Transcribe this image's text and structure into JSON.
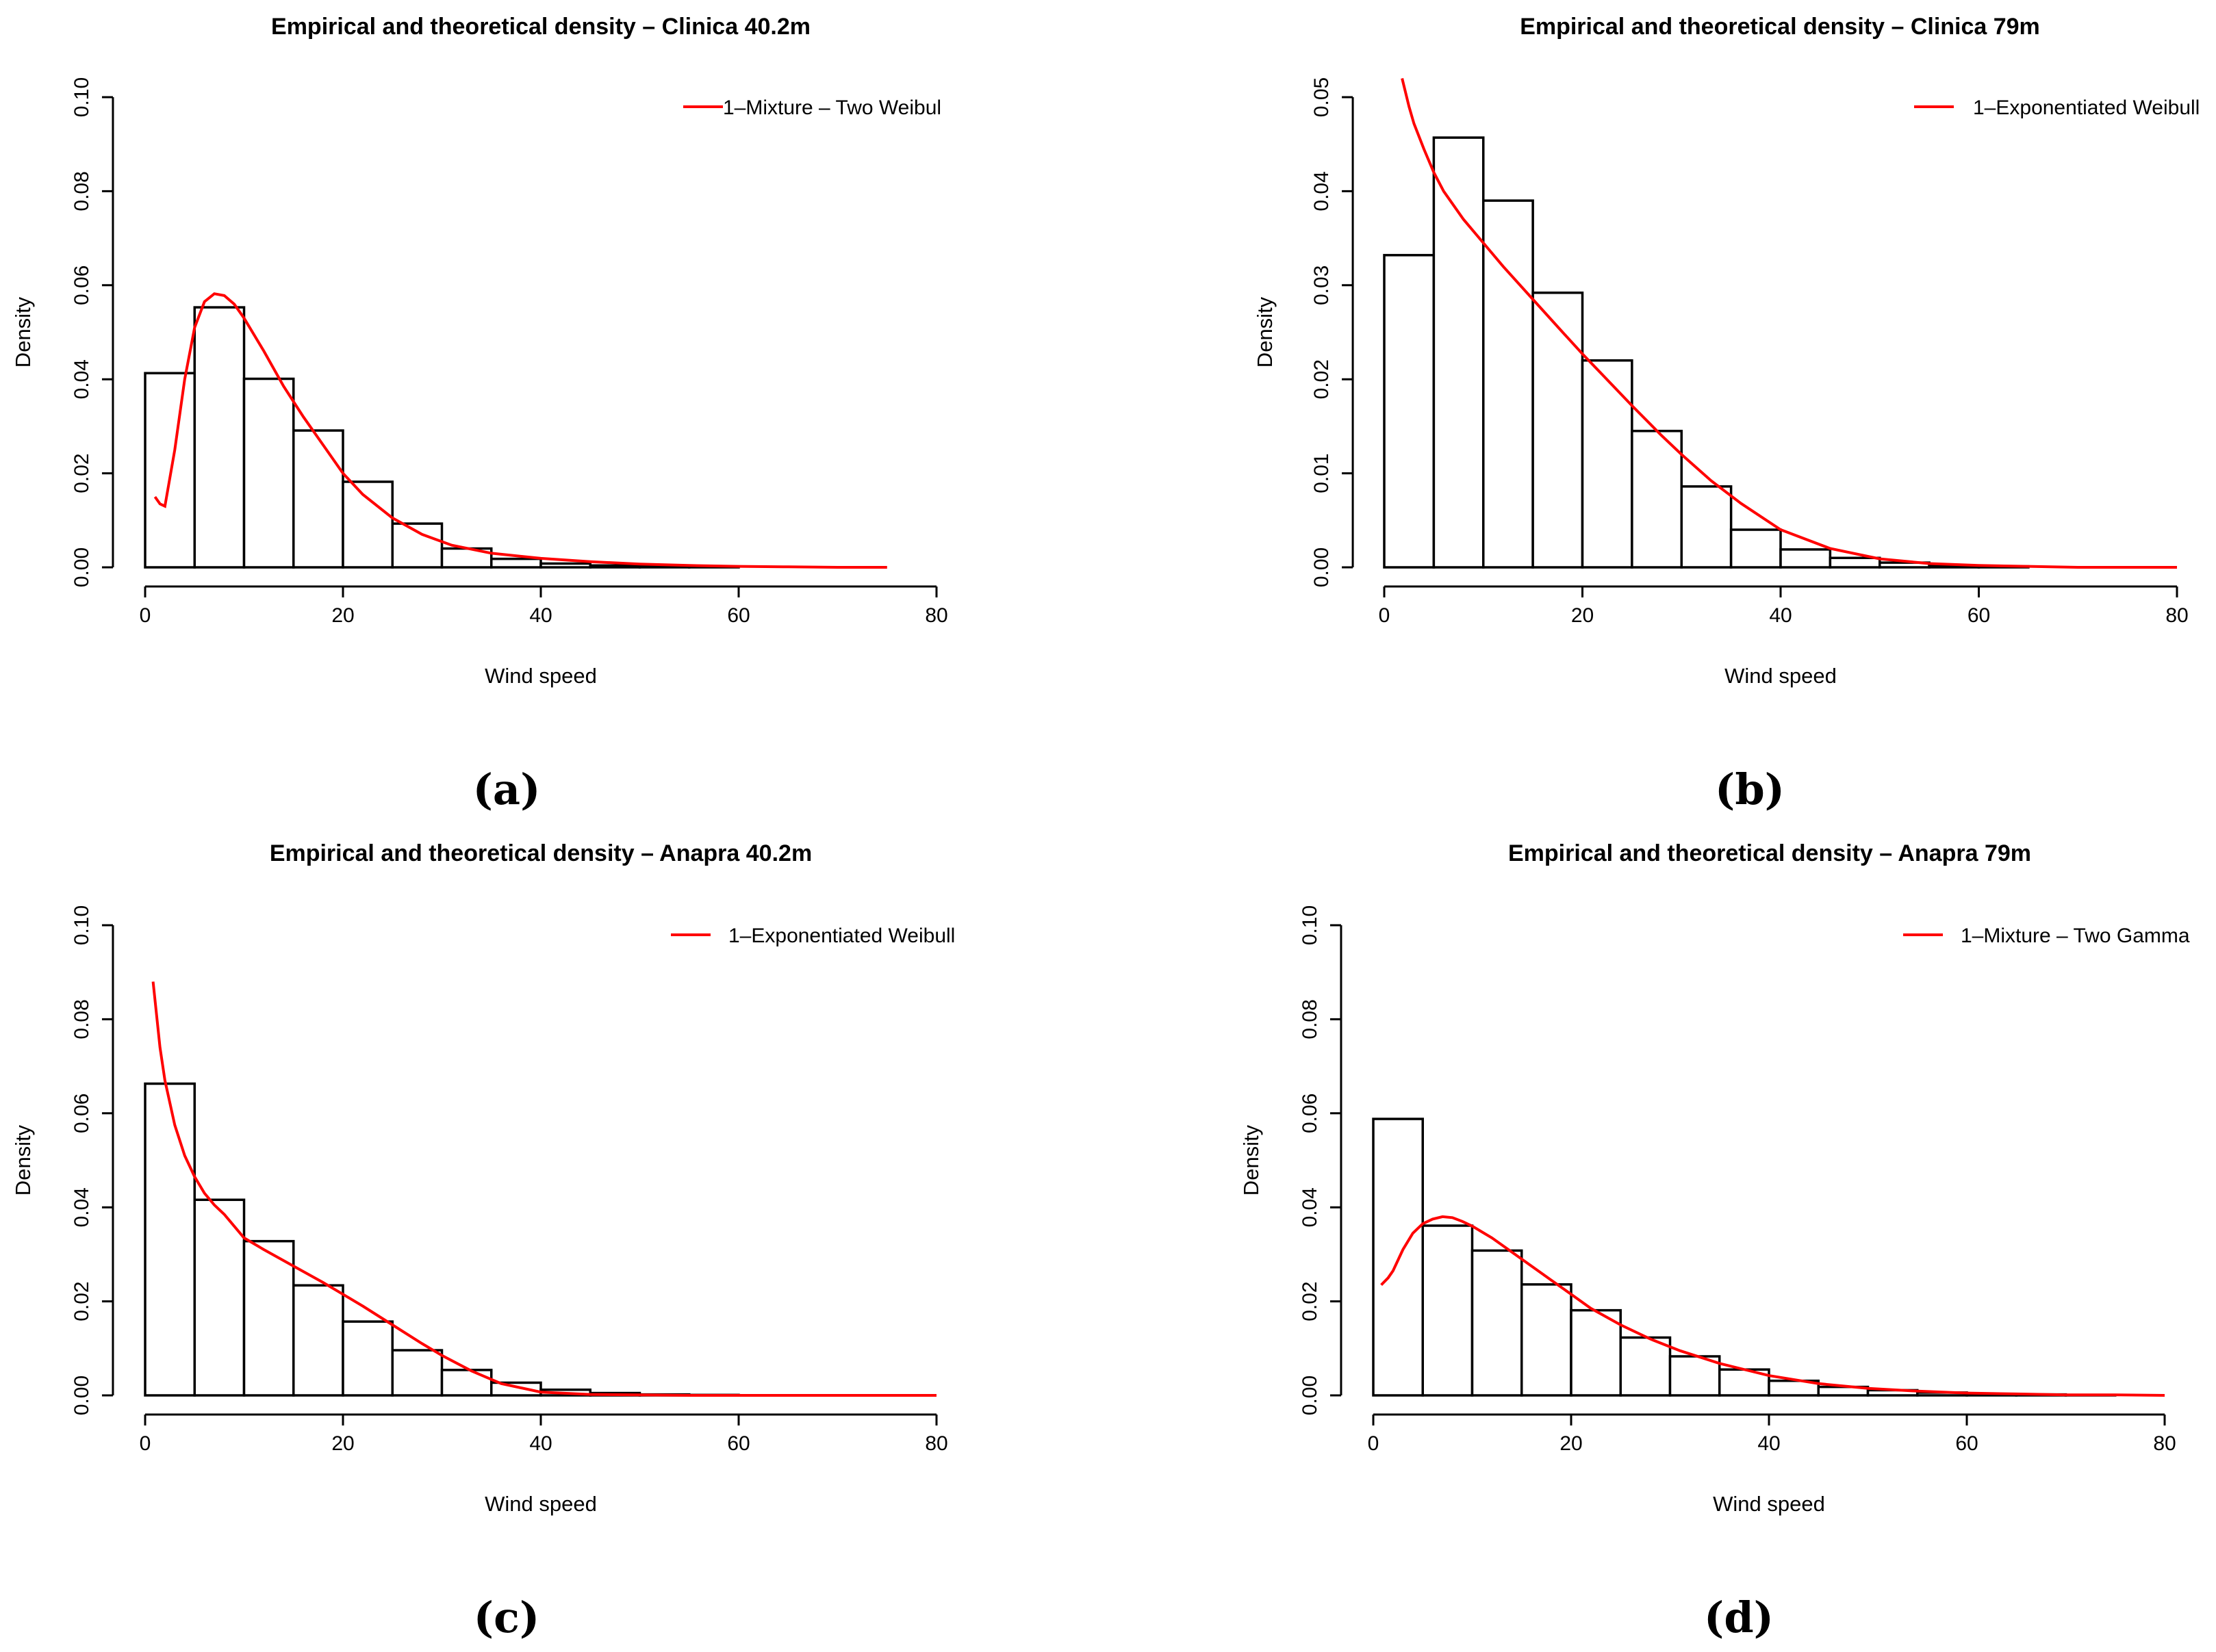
{
  "chart_data": [
    {
      "type": "histogram",
      "panel_label": "(a)",
      "title": "Empirical and theoretical density – Clinica 40.2m",
      "xlabel": "Wind speed",
      "ylabel": "Density",
      "xlim": [
        0,
        80
      ],
      "ylim": [
        0,
        0.1
      ],
      "xticks": [
        0,
        20,
        40,
        60,
        80
      ],
      "xtick_labels": [
        "0",
        "20",
        "40",
        "60",
        "80"
      ],
      "yticks": [
        0,
        0.02,
        0.04,
        0.06,
        0.08,
        0.1
      ],
      "ytick_labels": [
        "0.00",
        "0.02",
        "0.04",
        "0.06",
        "0.08",
        "0.10"
      ],
      "bin_edges": [
        0,
        5,
        10,
        15,
        20,
        25,
        30,
        35,
        40,
        45,
        50,
        55,
        60,
        65,
        70,
        75,
        80
      ],
      "values": [
        0.0413,
        0.0553,
        0.0401,
        0.0291,
        0.0182,
        0.0093,
        0.004,
        0.0018,
        0.0008,
        0.0004,
        0.0002,
        0.0001,
        0.0,
        0.0,
        0.0,
        0.0
      ],
      "legend": "1–Mixture – Two Weibul",
      "legend_position": "top-right",
      "curve_color": "#ff0000",
      "curve": {
        "x": [
          1,
          1.5,
          2,
          3,
          4,
          5,
          6,
          7,
          8,
          9,
          10,
          12,
          14,
          16,
          18,
          20,
          22,
          25,
          28,
          31,
          35,
          40,
          45,
          50,
          55,
          60,
          65,
          70,
          75
        ],
        "y": [
          0.015,
          0.0135,
          0.013,
          0.025,
          0.04,
          0.051,
          0.0565,
          0.0582,
          0.0578,
          0.056,
          0.053,
          0.046,
          0.0385,
          0.032,
          0.026,
          0.02,
          0.0155,
          0.0105,
          0.007,
          0.0047,
          0.003,
          0.0019,
          0.0012,
          0.0007,
          0.0004,
          0.0002,
          0.0001,
          0.0,
          0.0
        ]
      }
    },
    {
      "type": "histogram",
      "panel_label": "(b)",
      "title": "Empirical and theoretical density – Clinica 79m",
      "xlabel": "Wind speed",
      "ylabel": "Density",
      "xlim": [
        0,
        80
      ],
      "ylim": [
        0,
        0.05
      ],
      "xticks": [
        0,
        20,
        40,
        60,
        80
      ],
      "xtick_labels": [
        "0",
        "20",
        "40",
        "60",
        "80"
      ],
      "yticks": [
        0,
        0.01,
        0.02,
        0.03,
        0.04,
        0.05
      ],
      "ytick_labels": [
        "0.00",
        "0.01",
        "0.02",
        "0.03",
        "0.04",
        "0.05"
      ],
      "bin_edges": [
        0,
        5,
        10,
        15,
        20,
        25,
        30,
        35,
        40,
        45,
        50,
        55,
        60,
        65,
        70,
        75,
        80
      ],
      "values": [
        0.0332,
        0.0457,
        0.039,
        0.0292,
        0.022,
        0.0145,
        0.0086,
        0.004,
        0.0019,
        0.001,
        0.0005,
        0.0002,
        0.0001,
        0.0,
        0.0,
        0.0
      ],
      "legend": "1–Exponentiated Weibull",
      "legend_position": "top-right",
      "curve_color": "#ff0000",
      "curve": {
        "x": [
          1.8,
          2.5,
          3,
          4,
          5,
          6,
          8,
          10,
          12,
          15,
          18,
          20,
          22,
          25,
          28,
          30,
          33,
          36,
          40,
          45,
          50,
          55,
          60,
          65,
          70,
          75,
          80
        ],
        "y": [
          0.052,
          0.049,
          0.0472,
          0.0445,
          0.042,
          0.04,
          0.037,
          0.0345,
          0.032,
          0.0285,
          0.025,
          0.0227,
          0.0205,
          0.0172,
          0.014,
          0.012,
          0.0092,
          0.0068,
          0.004,
          0.002,
          0.0009,
          0.0004,
          0.0002,
          0.0001,
          0.0,
          0.0,
          0.0
        ]
      }
    },
    {
      "type": "histogram",
      "panel_label": "(c)",
      "title": "Empirical and theoretical density – Anapra 40.2m",
      "xlabel": "Wind speed",
      "ylabel": "Density",
      "xlim": [
        0,
        80
      ],
      "ylim": [
        0,
        0.1
      ],
      "xticks": [
        0,
        20,
        40,
        60,
        80
      ],
      "xtick_labels": [
        "0",
        "20",
        "40",
        "60",
        "80"
      ],
      "yticks": [
        0,
        0.02,
        0.04,
        0.06,
        0.08,
        0.1
      ],
      "ytick_labels": [
        "0.00",
        "0.02",
        "0.04",
        "0.06",
        "0.08",
        "0.10"
      ],
      "bin_edges": [
        0,
        5,
        10,
        15,
        20,
        25,
        30,
        35,
        40,
        45,
        50,
        55,
        60,
        65,
        70,
        75,
        80
      ],
      "values": [
        0.0663,
        0.0416,
        0.0328,
        0.0234,
        0.0157,
        0.0096,
        0.0054,
        0.0027,
        0.0012,
        0.0005,
        0.0002,
        0.0001,
        0.0,
        0.0,
        0.0,
        0.0
      ],
      "legend": "1–Exponentiated Weibull",
      "legend_position": "top-right",
      "curve_color": "#ff0000",
      "curve": {
        "x": [
          0.8,
          1.5,
          2,
          3,
          4,
          5,
          6,
          7,
          8,
          10,
          12,
          15,
          18,
          20,
          22,
          25,
          28,
          30,
          33,
          36,
          40,
          45,
          50,
          55,
          60,
          65,
          70,
          75,
          80
        ],
        "y": [
          0.088,
          0.074,
          0.067,
          0.0575,
          0.051,
          0.0465,
          0.043,
          0.0405,
          0.0385,
          0.0335,
          0.031,
          0.0275,
          0.024,
          0.0215,
          0.019,
          0.015,
          0.011,
          0.0085,
          0.0052,
          0.0025,
          0.0007,
          0.0002,
          0.0001,
          0.0,
          0.0,
          0.0,
          0.0,
          0.0,
          0.0
        ]
      }
    },
    {
      "type": "histogram",
      "panel_label": "(d)",
      "title": "Empirical and theoretical density – Anapra 79m",
      "xlabel": "Wind speed",
      "ylabel": "Density",
      "xlim": [
        0,
        80
      ],
      "ylim": [
        0,
        0.1
      ],
      "xticks": [
        0,
        20,
        40,
        60,
        80
      ],
      "xtick_labels": [
        "0",
        "20",
        "40",
        "60",
        "80"
      ],
      "yticks": [
        0,
        0.02,
        0.04,
        0.06,
        0.08,
        0.1
      ],
      "ytick_labels": [
        "0.00",
        "0.02",
        "0.04",
        "0.06",
        "0.08",
        "0.10"
      ],
      "bin_edges": [
        0,
        5,
        10,
        15,
        20,
        25,
        30,
        35,
        40,
        45,
        50,
        55,
        60,
        65,
        70,
        75,
        80
      ],
      "values": [
        0.0588,
        0.0361,
        0.0308,
        0.0236,
        0.0181,
        0.0123,
        0.0083,
        0.0055,
        0.0031,
        0.0018,
        0.0011,
        0.0006,
        0.0003,
        0.0002,
        0.0001,
        0.0
      ],
      "legend": "1–Mixture – Two Gamma",
      "legend_position": "top-right",
      "curve_color": "#ff0000",
      "curve": {
        "x": [
          0.8,
          1.5,
          2,
          3,
          4,
          5,
          6,
          7,
          8,
          9,
          10,
          12,
          14,
          16,
          18,
          20,
          22,
          25,
          28,
          31,
          35,
          40,
          45,
          50,
          55,
          60,
          65,
          70,
          75,
          80
        ],
        "y": [
          0.0235,
          0.025,
          0.0265,
          0.031,
          0.0345,
          0.0365,
          0.0375,
          0.038,
          0.0378,
          0.037,
          0.036,
          0.0335,
          0.0305,
          0.0275,
          0.0245,
          0.0215,
          0.0185,
          0.015,
          0.012,
          0.0095,
          0.0068,
          0.0042,
          0.0025,
          0.0015,
          0.0009,
          0.0005,
          0.0003,
          0.0001,
          0.0001,
          0.0
        ]
      }
    }
  ]
}
